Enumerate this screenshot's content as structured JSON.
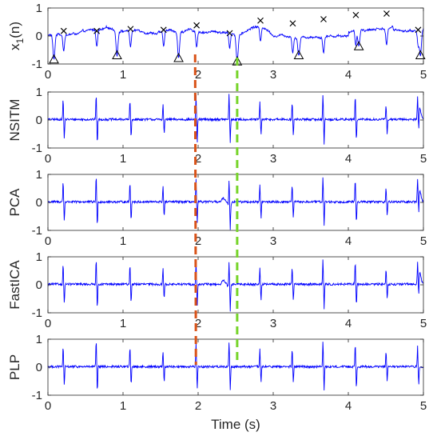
{
  "chart_data": {
    "type": "line",
    "xlabel": "Time (s)",
    "xlim": [
      0,
      5
    ],
    "ylim": [
      -1,
      1
    ],
    "x_ticks": [
      "0",
      "1",
      "2",
      "3",
      "4",
      "5"
    ],
    "y_ticks": [
      "1",
      "0",
      "-1"
    ],
    "signal_color": "#0000ff",
    "panels": [
      {
        "ylabel": "x₁(n)",
        "ylabel_main": "x",
        "ylabel_sub": "1",
        "ylabel_tail": "(n)"
      },
      {
        "ylabel": "NSITM"
      },
      {
        "ylabel": "PCA"
      },
      {
        "ylabel": "FastICA"
      },
      {
        "ylabel": "PLP"
      }
    ],
    "maternal_peaks_x": [
      0.21,
      0.65,
      1.1,
      1.54,
      1.98,
      2.42,
      2.83,
      3.26,
      3.67,
      4.1,
      4.51,
      4.93
    ],
    "maternal_peaks_y": [
      0.18,
      0.18,
      0.25,
      0.22,
      0.38,
      0.1,
      0.55,
      0.45,
      0.6,
      0.75,
      0.8,
      0.22
    ],
    "fetal_peaks_x": [
      0.08,
      0.92,
      1.74,
      2.52,
      3.34,
      4.14,
      4.96
    ],
    "fetal_peaks_y": [
      -0.85,
      -0.7,
      -0.8,
      -0.92,
      -0.7,
      -0.38,
      -0.7
    ],
    "maternal_marker": "x",
    "fetal_marker": "triangle",
    "spike_times": [
      0.21,
      0.65,
      1.1,
      1.54,
      1.98,
      2.42,
      2.83,
      3.26,
      3.67,
      4.1,
      4.51,
      4.93
    ],
    "vertical_lines": [
      {
        "x": 1.96,
        "color": "#d95319",
        "style": "dashed"
      },
      {
        "x": 2.52,
        "color": "#77d42a",
        "style": "dashed"
      }
    ],
    "grid": false
  }
}
